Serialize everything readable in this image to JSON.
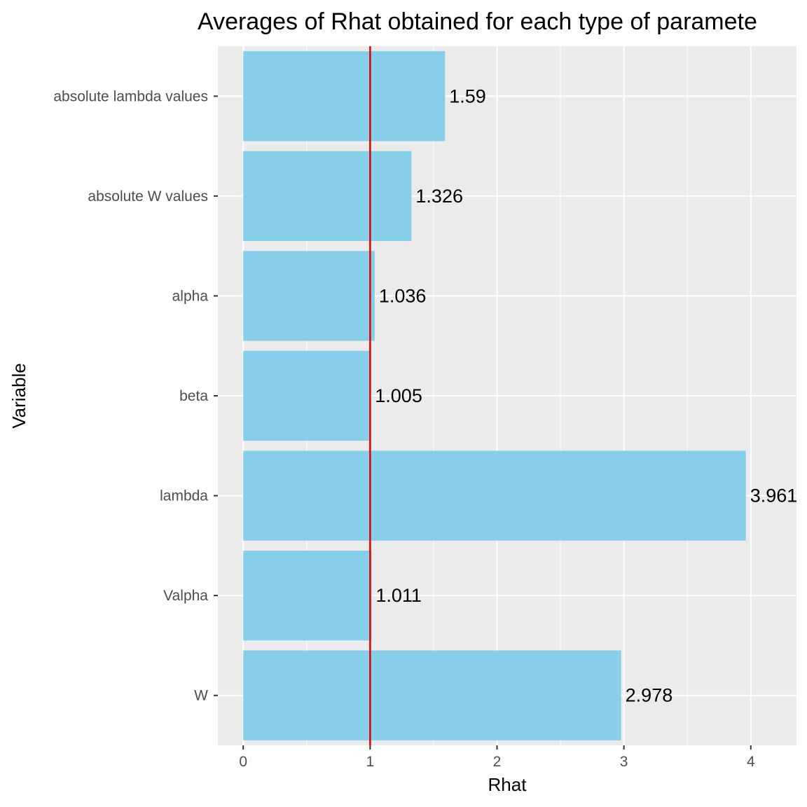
{
  "chart_data": {
    "type": "bar",
    "orientation": "horizontal",
    "title": "Averages of Rhat obtained for each type of paramete",
    "xlabel": "Rhat",
    "ylabel": "Variable",
    "categories": [
      "W",
      "Valpha",
      "lambda",
      "beta",
      "alpha",
      "absolute W values",
      "absolute lambda values"
    ],
    "values": [
      2.978,
      1.011,
      3.961,
      1.005,
      1.036,
      1.326,
      1.59
    ],
    "value_labels": [
      "2.978",
      "1.011",
      "3.961",
      "1.005",
      "1.036",
      "1.326",
      "1.59"
    ],
    "xlim": [
      -0.2,
      4.36
    ],
    "x_ticks": [
      0,
      1,
      2,
      3,
      4
    ],
    "x_tick_labels": [
      "0",
      "1",
      "2",
      "3",
      "4"
    ],
    "reference_line": {
      "x": 1,
      "color": "#e00000"
    },
    "grid": true,
    "legend": "none",
    "colors": {
      "bar": "#87ceeb",
      "panel_background": "#ebebeb",
      "grid": "#ffffff"
    }
  }
}
